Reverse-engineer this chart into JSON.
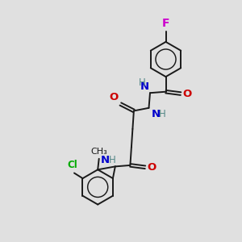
{
  "bg_color": "#e0e0e0",
  "bond_color": "#1a1a1a",
  "N_color": "#0000cc",
  "O_color": "#cc0000",
  "F_color": "#cc00cc",
  "Cl_color": "#00aa00",
  "H_color": "#558888",
  "line_width": 1.4,
  "font_size": 8.5,
  "fig_w": 3.0,
  "fig_h": 3.0,
  "dpi": 100,
  "xlim": [
    0,
    10
  ],
  "ylim": [
    0,
    10
  ]
}
